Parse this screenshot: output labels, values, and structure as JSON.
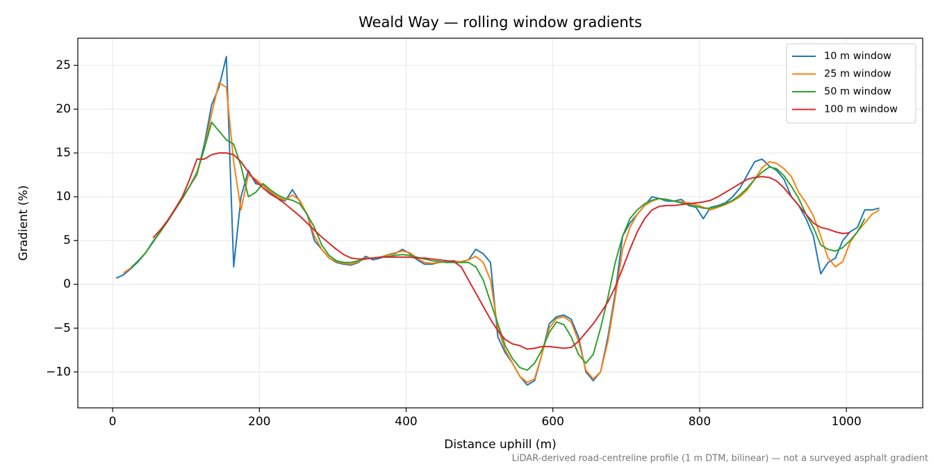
{
  "chart_data": {
    "type": "line",
    "title": "Weald Way — rolling window gradients",
    "x_label": "Distance uphill (m)",
    "y_label": "Gradient (%)",
    "annotation": "LiDAR-derived road-centreline profile (1 m DTM, bilinear) — not a surveyed asphalt gradient",
    "x": [
      5,
      15,
      25,
      35,
      45,
      55,
      65,
      75,
      85,
      95,
      105,
      115,
      125,
      135,
      145,
      155,
      165,
      175,
      185,
      195,
      205,
      215,
      225,
      235,
      245,
      255,
      265,
      275,
      285,
      295,
      305,
      315,
      325,
      335,
      345,
      355,
      365,
      375,
      385,
      395,
      405,
      415,
      425,
      435,
      445,
      455,
      465,
      475,
      485,
      495,
      505,
      515,
      525,
      535,
      545,
      555,
      565,
      575,
      585,
      595,
      605,
      615,
      625,
      635,
      645,
      655,
      665,
      675,
      685,
      695,
      705,
      715,
      725,
      735,
      745,
      755,
      765,
      775,
      785,
      795,
      805,
      815,
      825,
      835,
      845,
      855,
      865,
      875,
      885,
      895,
      905,
      915,
      925,
      935,
      945,
      955,
      965,
      975,
      985,
      995,
      1005,
      1015,
      1025,
      1035,
      1045
    ],
    "series": [
      {
        "name": "10 m window",
        "color": "#1f77b4",
        "values": [
          0.7,
          1.1,
          1.8,
          2.6,
          3.6,
          4.9,
          6.0,
          7.2,
          8.6,
          9.8,
          11.2,
          12.5,
          16,
          20.5,
          22.5,
          26,
          2,
          10,
          13,
          11.5,
          11.3,
          10.5,
          9.8,
          9.5,
          10.8,
          9.5,
          8,
          5,
          4,
          3,
          2.5,
          2.3,
          2.2,
          2.5,
          3.2,
          2.8,
          3,
          3.4,
          3.5,
          4,
          3.5,
          2.8,
          2.3,
          2.3,
          2.5,
          2.6,
          2.7,
          2.5,
          2.8,
          4,
          3.5,
          2.5,
          -6,
          -7.8,
          -9,
          -10.5,
          -11.5,
          -11,
          -8,
          -4.5,
          -3.7,
          -3.5,
          -4,
          -6,
          -10,
          -11,
          -10,
          -6,
          -1,
          5.5,
          7,
          8,
          9,
          10,
          9.8,
          9.5,
          9.5,
          9.7,
          9,
          8.8,
          7.5,
          8.8,
          9,
          9.3,
          10,
          11,
          12.5,
          14,
          14.3,
          13.5,
          13,
          12,
          10,
          9,
          7.5,
          5.5,
          1.2,
          2.5,
          3,
          5,
          6,
          6.5,
          8.5,
          8.5,
          8.7
        ]
      },
      {
        "name": "25 m window",
        "color": "#ff7f0e",
        "values": [
          null,
          1.3,
          1.9,
          2.7,
          3.6,
          4.8,
          6.0,
          7.2,
          8.5,
          9.8,
          11.2,
          12.6,
          15.5,
          19.5,
          23,
          22.5,
          14,
          8.5,
          12.5,
          12,
          11.3,
          10.6,
          10,
          9.6,
          10.2,
          9.6,
          8,
          5.5,
          4,
          3,
          2.6,
          2.4,
          2.3,
          2.6,
          3,
          3,
          3.1,
          3.4,
          3.6,
          3.8,
          3.6,
          3,
          2.5,
          2.4,
          2.5,
          2.6,
          2.6,
          2.6,
          2.8,
          3.2,
          2.5,
          0.5,
          -5,
          -7.5,
          -9,
          -10.5,
          -11.2,
          -10.8,
          -8,
          -5,
          -3.9,
          -3.7,
          -4.3,
          -6.5,
          -9.8,
          -10.8,
          -10,
          -6.5,
          -1.5,
          4,
          6.5,
          8,
          9,
          9.5,
          9.8,
          9.7,
          9.5,
          9.4,
          9.3,
          9.1,
          8.8,
          8.5,
          8.8,
          9.1,
          9.5,
          10,
          10.8,
          12,
          13.3,
          14,
          13.8,
          13.2,
          12.3,
          10.5,
          9.3,
          7.8,
          5.5,
          3,
          2,
          2.6,
          4.8,
          6,
          7,
          8,
          8.5
        ]
      },
      {
        "name": "50 m window",
        "color": "#2ca02c",
        "values": [
          null,
          null,
          1.9,
          2.7,
          3.6,
          4.8,
          6,
          7.2,
          8.5,
          9.8,
          11.2,
          12.8,
          15.5,
          18.5,
          17.5,
          16.5,
          16,
          13.5,
          10,
          10.5,
          11.5,
          10.8,
          10.2,
          9.8,
          9.6,
          9.2,
          8,
          6.5,
          4.5,
          3.3,
          2.7,
          2.5,
          2.5,
          2.7,
          2.9,
          3,
          3.1,
          3.2,
          3.3,
          3.4,
          3.3,
          3.1,
          2.9,
          2.7,
          2.6,
          2.5,
          2.5,
          2.5,
          2.5,
          2,
          0.5,
          -2,
          -4.5,
          -7,
          -8.5,
          -9.5,
          -9.8,
          -9,
          -7.5,
          -5.5,
          -4.3,
          -4.6,
          -6,
          -8,
          -9,
          -8,
          -5,
          -1.5,
          2.5,
          5.5,
          7.5,
          8.5,
          9.2,
          9.6,
          9.8,
          9.7,
          9.5,
          9.3,
          9.1,
          8.9,
          8.7,
          8.7,
          8.9,
          9.2,
          9.6,
          10.2,
          11,
          12,
          12.8,
          13.4,
          13.2,
          12.4,
          11.2,
          9.8,
          8,
          6.5,
          4.5,
          4,
          3.8,
          4.2,
          5,
          6,
          7.5,
          null,
          null
        ]
      },
      {
        "name": "100 m window",
        "color": "#d62728",
        "values": [
          null,
          null,
          null,
          null,
          null,
          5.3,
          6.2,
          7.3,
          8.6,
          10,
          12,
          14.3,
          14.3,
          14.8,
          15,
          15,
          14.8,
          14,
          12.8,
          11.8,
          11,
          10.3,
          9.8,
          9.2,
          8.5,
          7.8,
          7,
          6.2,
          5.4,
          4.7,
          4,
          3.4,
          3,
          2.9,
          2.9,
          3,
          3.1,
          3.1,
          3.1,
          3.1,
          3.1,
          3,
          3,
          2.9,
          2.8,
          2.7,
          2.6,
          2,
          0.5,
          -1,
          -2.5,
          -4,
          -5.3,
          -6.3,
          -6.8,
          -7,
          -7.4,
          -7.3,
          -7.1,
          -7.1,
          -7.2,
          -7.3,
          -7.2,
          -6.5,
          -5.5,
          -4.5,
          -3.3,
          -2,
          -0.3,
          1.8,
          4,
          6,
          7.5,
          8.5,
          8.9,
          9,
          9,
          9.1,
          9.2,
          9.3,
          9.4,
          9.6,
          10,
          10.5,
          11,
          11.5,
          12,
          12.2,
          12.3,
          12.2,
          11.8,
          11,
          10,
          9,
          8,
          7,
          6.5,
          6.3,
          6,
          5.8,
          5.9,
          null,
          null,
          null,
          null
        ]
      }
    ],
    "xlim": [
      -47.4,
      1104
    ],
    "ylim": [
      -14.1,
      28.1
    ],
    "xticks": [
      0,
      200,
      400,
      600,
      800,
      1000
    ],
    "yticks": [
      {
        "value": -10,
        "label": "−10"
      },
      {
        "value": -5,
        "label": "−5"
      },
      0,
      5,
      10,
      15,
      20,
      25
    ],
    "grid": true,
    "legend": "upper right"
  }
}
